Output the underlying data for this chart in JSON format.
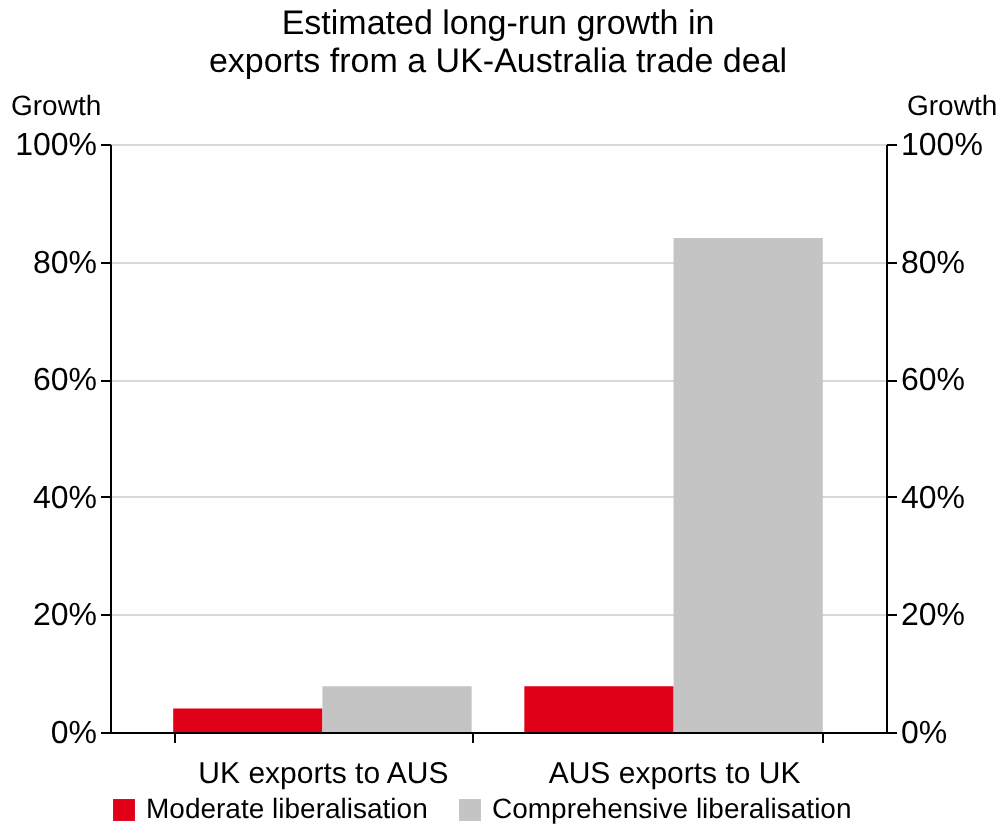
{
  "chart_data": {
    "type": "bar",
    "title": "Estimated  long-run growth in\nexports from a UK-Australia trade deal",
    "ylabel": "Growth",
    "y2label": "Growth",
    "categories": [
      "UK exports to AUS",
      "AUS exports to UK"
    ],
    "series": [
      {
        "name": "Moderate liberalisation",
        "color": "#e00017",
        "values": [
          4.0,
          7.8
        ]
      },
      {
        "name": "Comprehensive liberalisation",
        "color": "#c4c4c4",
        "values": [
          7.8,
          84.0
        ]
      }
    ],
    "ylim": [
      0,
      100
    ],
    "yticks": [
      {
        "value": 0,
        "label": "0%"
      },
      {
        "value": 20,
        "label": "20%"
      },
      {
        "value": 40,
        "label": "40%"
      },
      {
        "value": 60,
        "label": "60%"
      },
      {
        "value": 80,
        "label": "80%"
      },
      {
        "value": 100,
        "label": "100%"
      }
    ],
    "y2lim": [
      0,
      100
    ],
    "y2ticks": [
      {
        "value": 0,
        "label": "0%"
      },
      {
        "value": 20,
        "label": "20%"
      },
      {
        "value": 40,
        "label": "40%"
      },
      {
        "value": 60,
        "label": "60%"
      },
      {
        "value": 80,
        "label": "80%"
      },
      {
        "value": 100,
        "label": "100%"
      }
    ],
    "grid": "y",
    "legend": "bottom"
  }
}
